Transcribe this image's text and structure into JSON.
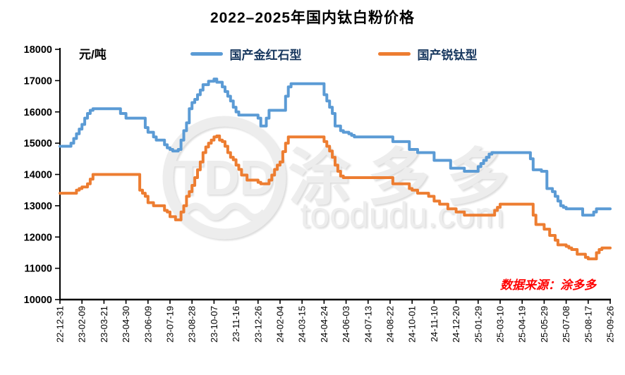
{
  "title": "2022–2025年国内钛白粉价格",
  "unit_label": "元/吨",
  "source_note": "数据来源：涂多多",
  "watermark": {
    "logo_text": "TDD",
    "brand_cn": "涂 多 多",
    "brand_domain": "toodudu.com"
  },
  "colors": {
    "rutile_line": "#5B9BD5",
    "anatase_line": "#ED7D31",
    "legend_text": "#17375e",
    "source_note": "#FF0000",
    "axis": "#000000",
    "watermark_fill": "#ededed"
  },
  "chart_data": {
    "type": "line",
    "title": "2022–2025年国内钛白粉价格",
    "xlabel": "",
    "ylabel": "元/吨",
    "ylim": [
      10000,
      18000
    ],
    "ytick_step": 1000,
    "grid": false,
    "legend_position": "top",
    "line_style": "step-after",
    "x_tick_every": 8,
    "x_tick_labels": [
      "22-12-31",
      "23-02-09",
      "23-03-21",
      "23-04-30",
      "23-06-09",
      "23-07-19",
      "23-08-28",
      "23-10-07",
      "23-11-16",
      "23-12-26",
      "24-02-04",
      "24-03-15",
      "24-04-24",
      "24-06-03",
      "24-07-13",
      "24-08-22",
      "24-10-01",
      "24-11-10",
      "24-12-20",
      "25-01-29",
      "25-03-10",
      "25-04-19",
      "25-05-29",
      "25-07-08",
      "25-08-17",
      "25-09-26"
    ],
    "series": [
      {
        "name": "国产金红石型",
        "color": "#5B9BD5",
        "values": [
          14900,
          14900,
          14900,
          14900,
          15000,
          15150,
          15300,
          15450,
          15600,
          15800,
          15950,
          16050,
          16100,
          16100,
          16100,
          16100,
          16100,
          16100,
          16100,
          16100,
          16100,
          16100,
          15950,
          15950,
          15800,
          15800,
          15800,
          15800,
          15800,
          15800,
          15800,
          15500,
          15350,
          15350,
          15200,
          15100,
          15100,
          15100,
          14950,
          14850,
          14800,
          14750,
          14750,
          14800,
          15100,
          15400,
          15650,
          16100,
          16300,
          16400,
          16550,
          16700,
          16870,
          16870,
          16980,
          16980,
          17050,
          16950,
          16950,
          16800,
          16650,
          16500,
          16350,
          16150,
          16000,
          15900,
          15900,
          15900,
          15900,
          15900,
          15900,
          15900,
          15800,
          15550,
          15550,
          15800,
          16050,
          16050,
          16050,
          16050,
          16050,
          16050,
          16500,
          16800,
          16900,
          16900,
          16900,
          16900,
          16900,
          16900,
          16900,
          16900,
          16900,
          16900,
          16900,
          16900,
          16550,
          16350,
          16150,
          15950,
          15550,
          15550,
          15400,
          15350,
          15350,
          15300,
          15250,
          15200,
          15200,
          15200,
          15200,
          15200,
          15200,
          15200,
          15200,
          15200,
          15200,
          15200,
          15200,
          15200,
          15200,
          15050,
          15050,
          15050,
          15050,
          15050,
          15050,
          14800,
          14800,
          14800,
          14700,
          14700,
          14700,
          14700,
          14700,
          14700,
          14450,
          14450,
          14450,
          14450,
          14450,
          14450,
          14200,
          14200,
          14200,
          14200,
          14200,
          14100,
          14100,
          14100,
          14100,
          14100,
          14250,
          14350,
          14450,
          14550,
          14650,
          14700,
          14700,
          14700,
          14700,
          14700,
          14700,
          14700,
          14700,
          14700,
          14700,
          14700,
          14700,
          14700,
          14700,
          14500,
          14150,
          14150,
          14150,
          14100,
          14100,
          13550,
          13550,
          13450,
          13300,
          13150,
          13000,
          12950,
          12900,
          12900,
          12900,
          12900,
          12900,
          12900,
          12700,
          12700,
          12700,
          12700,
          12800,
          12900,
          12900,
          12900,
          12900,
          12900,
          12900
        ]
      },
      {
        "name": "国产锐钛型",
        "color": "#ED7D31",
        "values": [
          13400,
          13400,
          13400,
          13400,
          13400,
          13400,
          13500,
          13550,
          13600,
          13600,
          13700,
          13850,
          14000,
          14000,
          14000,
          14000,
          14000,
          14000,
          14000,
          14000,
          14000,
          14000,
          14000,
          14000,
          14000,
          14000,
          14000,
          14000,
          14000,
          13500,
          13400,
          13300,
          13100,
          13100,
          13000,
          13000,
          13000,
          13000,
          12850,
          12800,
          12650,
          12650,
          12550,
          12550,
          12800,
          13000,
          13300,
          13450,
          13650,
          13900,
          14150,
          14400,
          14700,
          14880,
          15000,
          15100,
          15200,
          15230,
          15100,
          15050,
          14900,
          14700,
          14550,
          14470,
          14300,
          14160,
          13980,
          13980,
          13820,
          13820,
          13820,
          13820,
          13750,
          13700,
          13700,
          13700,
          13820,
          13980,
          14160,
          14300,
          14400,
          14730,
          15000,
          15200,
          15200,
          15200,
          15200,
          15200,
          15200,
          15200,
          15200,
          15200,
          15200,
          15200,
          15200,
          15200,
          15050,
          14900,
          14750,
          14550,
          14300,
          14100,
          13950,
          13900,
          13900,
          13900,
          13900,
          13900,
          13900,
          13900,
          13900,
          13900,
          13900,
          13900,
          13900,
          13900,
          13900,
          13900,
          13900,
          13900,
          13900,
          13700,
          13700,
          13700,
          13700,
          13700,
          13700,
          13550,
          13500,
          13500,
          13400,
          13400,
          13400,
          13400,
          13300,
          13300,
          13150,
          13150,
          13050,
          13050,
          13050,
          12900,
          12900,
          12900,
          12800,
          12800,
          12800,
          12700,
          12700,
          12700,
          12700,
          12700,
          12700,
          12700,
          12700,
          12700,
          12700,
          12700,
          12850,
          12950,
          13050,
          13050,
          13050,
          13050,
          13050,
          13050,
          13050,
          13050,
          13050,
          13050,
          13050,
          13050,
          12700,
          12400,
          12400,
          12400,
          12250,
          12250,
          12050,
          12050,
          11900,
          11750,
          11750,
          11750,
          11700,
          11650,
          11600,
          11600,
          11450,
          11450,
          11450,
          11350,
          11300,
          11300,
          11300,
          11500,
          11600,
          11650,
          11650,
          11650,
          11650
        ]
      }
    ]
  }
}
